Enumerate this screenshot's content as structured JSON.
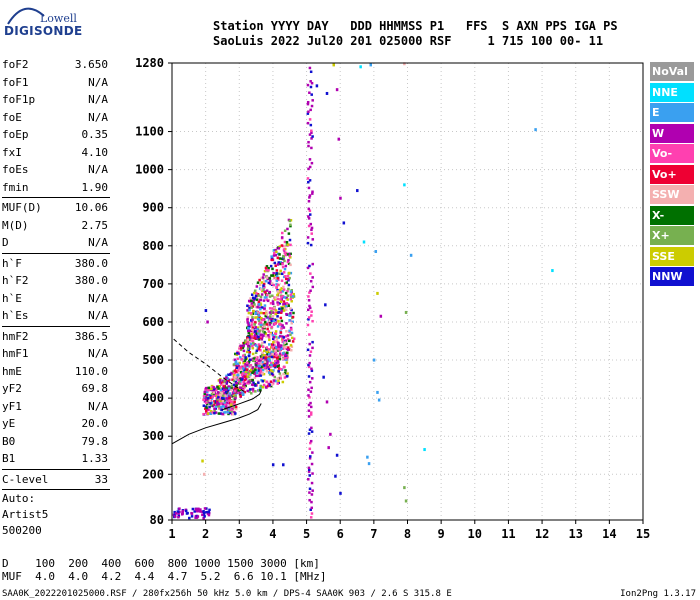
{
  "logo": {
    "line1": "Lowell",
    "line2": "DIGISONDE"
  },
  "header": {
    "line1": "Station YYYY DAY   DDD HHMMSS P1   FFS  S AXN PPS IGA PS",
    "line2": "SaoLuis 2022 Jul20 201 025000 RSF     1 715 100 00- 11"
  },
  "params": {
    "group1": [
      {
        "name": "foF2",
        "value": "3.650"
      },
      {
        "name": "foF1",
        "value": "N/A"
      },
      {
        "name": "foF1p",
        "value": "N/A"
      },
      {
        "name": "foE",
        "value": "N/A"
      },
      {
        "name": "foEp",
        "value": "0.35"
      },
      {
        "name": "fxI",
        "value": "4.10"
      },
      {
        "name": "foEs",
        "value": "N/A"
      },
      {
        "name": "fmin",
        "value": "1.90"
      }
    ],
    "group2": [
      {
        "name": "MUF(D)",
        "value": "10.06"
      },
      {
        "name": "M(D)",
        "value": "2.75"
      },
      {
        "name": "D",
        "value": "N/A"
      }
    ],
    "group3": [
      {
        "name": "h`F",
        "value": "380.0"
      },
      {
        "name": "h`F2",
        "value": "380.0"
      },
      {
        "name": "h`E",
        "value": "N/A"
      },
      {
        "name": "h`Es",
        "value": "N/A"
      }
    ],
    "group4": [
      {
        "name": "hmF2",
        "value": "386.5"
      },
      {
        "name": "hmF1",
        "value": "N/A"
      },
      {
        "name": "hmE",
        "value": "110.0"
      },
      {
        "name": "yF2",
        "value": "69.8"
      },
      {
        "name": "yF1",
        "value": "N/A"
      },
      {
        "name": "yE",
        "value": "20.0"
      },
      {
        "name": "B0",
        "value": "79.8"
      },
      {
        "name": "B1",
        "value": "1.33"
      }
    ],
    "group5": [
      {
        "name": "C-level",
        "value": "33"
      }
    ],
    "auto": [
      "Auto:",
      "Artist5",
      "500200"
    ]
  },
  "legend": [
    {
      "label": "NoVal",
      "color": "#9a9a9a"
    },
    {
      "label": "NNE",
      "color": "#00e0ff"
    },
    {
      "label": "E",
      "color": "#3aa0f0"
    },
    {
      "label": "W",
      "color": "#b000b0"
    },
    {
      "label": "Vo-",
      "color": "#ff40b0"
    },
    {
      "label": "Vo+",
      "color": "#ee0033"
    },
    {
      "label": "SSW",
      "color": "#f4b0b0"
    },
    {
      "label": "X-",
      "color": "#007000"
    },
    {
      "label": "X+",
      "color": "#77b050"
    },
    {
      "label": "SSE",
      "color": "#cccc00"
    },
    {
      "label": "NNW",
      "color": "#1010d0"
    }
  ],
  "bottom": {
    "line1": "D    100  200  400  600  800 1000 1500 3000 [km]",
    "line2": "MUF  4.0  4.0  4.2  4.4  4.7  5.2  6.6 10.1 [MHz]"
  },
  "footer": {
    "left": "SAA0K_2022201025000.RSF / 280fx256h 50 kHz 5.0 km / DPS-4 SAA0K 903 / 2.6 S 315.8 E",
    "right": "Ion2Png 1.3.17"
  },
  "chart_data": {
    "type": "scatter",
    "title": "",
    "xlabel": "",
    "ylabel": "",
    "xlim": [
      1,
      15
    ],
    "ylim": [
      80,
      1280
    ],
    "x_ticks": [
      "1",
      "2",
      "3",
      "4",
      "5",
      "6",
      "7",
      "8",
      "9",
      "10",
      "11",
      "12",
      "13",
      "14",
      "15"
    ],
    "y_ticks": [
      80,
      200,
      300,
      400,
      500,
      600,
      700,
      800,
      900,
      1000,
      1100,
      1280
    ],
    "ordinary_trace": {
      "freq_min": 1.9,
      "foF2": 3.65,
      "h_base": 380,
      "color": "#7b1fa2"
    },
    "band_signal": {
      "freq_range": [
        5.0,
        5.15
      ],
      "height_range": [
        80,
        1280
      ]
    },
    "reflection_clusters": [
      {
        "freq": [
          1.9,
          2.9
        ],
        "height": [
          355,
          430
        ]
      },
      {
        "freq": [
          2.3,
          4.4
        ],
        "height": [
          380,
          560
        ]
      },
      {
        "freq": [
          2.8,
          4.6
        ],
        "height": [
          420,
          700
        ]
      },
      {
        "freq": [
          3.2,
          4.5
        ],
        "height": [
          520,
          880
        ]
      },
      {
        "freq": [
          1.0,
          2.1
        ],
        "height": [
          82,
          110
        ]
      }
    ],
    "profile_curve": [
      [
        1.0,
        280
      ],
      [
        1.5,
        305
      ],
      [
        2.0,
        322
      ],
      [
        2.5,
        335
      ],
      [
        3.0,
        348
      ],
      [
        3.3,
        358
      ],
      [
        3.55,
        370
      ],
      [
        3.65,
        386
      ]
    ],
    "profile_curve2": [
      [
        2.5,
        370
      ],
      [
        3.0,
        385
      ],
      [
        3.4,
        398
      ],
      [
        3.6,
        410
      ],
      [
        3.65,
        420
      ]
    ],
    "dashed_curve": [
      [
        1.05,
        555
      ],
      [
        1.5,
        520
      ],
      [
        2.0,
        490
      ],
      [
        2.5,
        455
      ],
      [
        2.9,
        430
      ],
      [
        3.2,
        415
      ]
    ],
    "scattered_points": [
      {
        "x": 5.8,
        "y": 1275,
        "c": "#cccc00"
      },
      {
        "x": 6.6,
        "y": 1270,
        "c": "#00e0ff"
      },
      {
        "x": 6.9,
        "y": 1275,
        "c": "#3aa0f0"
      },
      {
        "x": 7.9,
        "y": 1278,
        "c": "#f4b0b0"
      },
      {
        "x": 5.3,
        "y": 1220,
        "c": "#1010d0"
      },
      {
        "x": 5.6,
        "y": 1200,
        "c": "#1010d0"
      },
      {
        "x": 5.9,
        "y": 1210,
        "c": "#b000b0"
      },
      {
        "x": 5.95,
        "y": 1080,
        "c": "#b000b0"
      },
      {
        "x": 6.0,
        "y": 925,
        "c": "#b000b0"
      },
      {
        "x": 6.1,
        "y": 860,
        "c": "#1010d0"
      },
      {
        "x": 6.5,
        "y": 945,
        "c": "#1010d0"
      },
      {
        "x": 6.7,
        "y": 810,
        "c": "#00e0ff"
      },
      {
        "x": 7.05,
        "y": 785,
        "c": "#3aa0f0"
      },
      {
        "x": 7.1,
        "y": 675,
        "c": "#cccc00"
      },
      {
        "x": 7.2,
        "y": 615,
        "c": "#b000b0"
      },
      {
        "x": 7.9,
        "y": 960,
        "c": "#00e0ff"
      },
      {
        "x": 8.1,
        "y": 775,
        "c": "#3aa0f0"
      },
      {
        "x": 7.95,
        "y": 625,
        "c": "#77b050"
      },
      {
        "x": 11.8,
        "y": 1105,
        "c": "#3aa0f0"
      },
      {
        "x": 12.3,
        "y": 735,
        "c": "#00e0ff"
      },
      {
        "x": 7.0,
        "y": 500,
        "c": "#3aa0f0"
      },
      {
        "x": 7.1,
        "y": 415,
        "c": "#3aa0f0"
      },
      {
        "x": 7.15,
        "y": 395,
        "c": "#3aa0f0"
      },
      {
        "x": 6.8,
        "y": 245,
        "c": "#3aa0f0"
      },
      {
        "x": 6.85,
        "y": 228,
        "c": "#3aa0f0"
      },
      {
        "x": 8.5,
        "y": 265,
        "c": "#00e0ff"
      },
      {
        "x": 7.9,
        "y": 165,
        "c": "#77b050"
      },
      {
        "x": 7.95,
        "y": 130,
        "c": "#77b050"
      },
      {
        "x": 5.7,
        "y": 305,
        "c": "#b000b0"
      },
      {
        "x": 5.65,
        "y": 270,
        "c": "#b000b0"
      },
      {
        "x": 5.9,
        "y": 250,
        "c": "#1010d0"
      },
      {
        "x": 5.85,
        "y": 195,
        "c": "#1010d0"
      },
      {
        "x": 6.0,
        "y": 150,
        "c": "#1010d0"
      },
      {
        "x": 5.5,
        "y": 455,
        "c": "#1010d0"
      },
      {
        "x": 5.6,
        "y": 390,
        "c": "#b000b0"
      },
      {
        "x": 5.55,
        "y": 645,
        "c": "#1010d0"
      },
      {
        "x": 4.0,
        "y": 225,
        "c": "#1010d0"
      },
      {
        "x": 4.3,
        "y": 225,
        "c": "#1010d0"
      },
      {
        "x": 1.95,
        "y": 200,
        "c": "#f4b0b0"
      },
      {
        "x": 1.9,
        "y": 235,
        "c": "#cccc00"
      },
      {
        "x": 2.0,
        "y": 630,
        "c": "#1010d0"
      },
      {
        "x": 2.05,
        "y": 600,
        "c": "#b000b0"
      }
    ]
  }
}
